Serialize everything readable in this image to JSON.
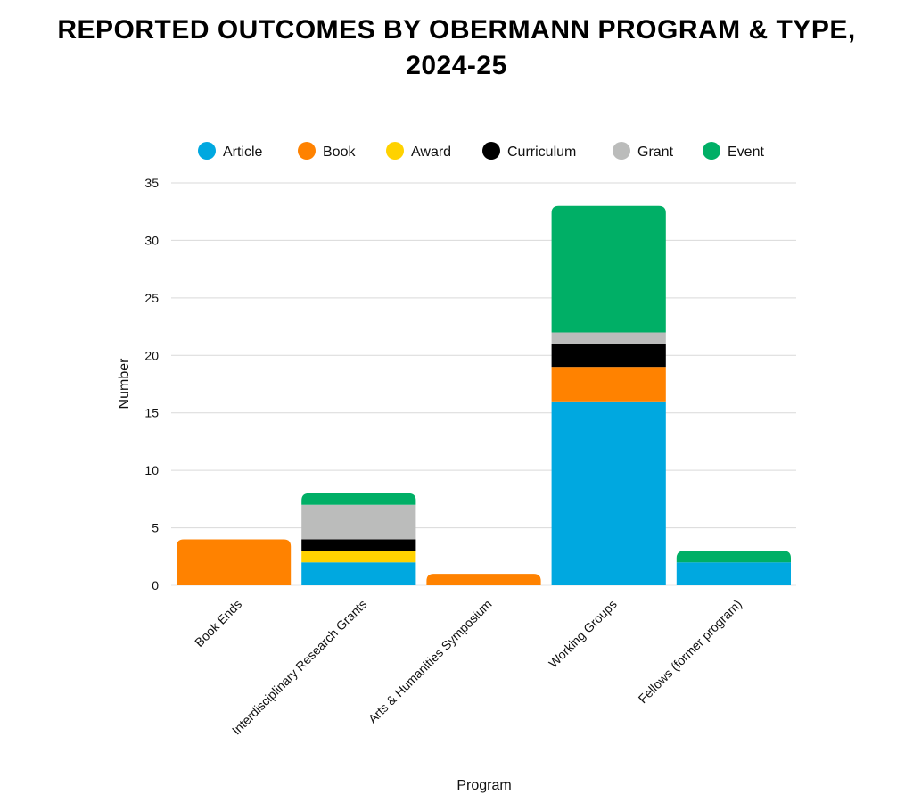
{
  "chart_data": {
    "type": "bar",
    "stacked": true,
    "title": "REPORTED OUTCOMES BY OBERMANN PROGRAM & TYPE, 2024-25",
    "title_lines": [
      "REPORTED OUTCOMES BY OBERMANN PROGRAM & TYPE,",
      "2024-25"
    ],
    "xlabel": "Program",
    "ylabel": "Number",
    "ylim": [
      0,
      35
    ],
    "yticks": [
      0,
      5,
      10,
      15,
      20,
      25,
      30,
      35
    ],
    "grid": true,
    "legend_position": "top",
    "categories": [
      "Book Ends",
      "Interdisciplinary Research Grants",
      "Arts & Humanities Symposium",
      "Working Groups",
      "Fellows (former program)"
    ],
    "series": [
      {
        "name": "Article",
        "color": "#00A8E0",
        "values": [
          0,
          2,
          0,
          16,
          2
        ]
      },
      {
        "name": "Book",
        "color": "#FF8200",
        "values": [
          4,
          0,
          1,
          3,
          0
        ]
      },
      {
        "name": "Award",
        "color": "#FFD200",
        "values": [
          0,
          1,
          0,
          0,
          0
        ]
      },
      {
        "name": "Curriculum",
        "color": "#000000",
        "values": [
          0,
          1,
          0,
          2,
          0
        ]
      },
      {
        "name": "Grant",
        "color": "#BBBCBB",
        "values": [
          0,
          3,
          0,
          1,
          0
        ]
      },
      {
        "name": "Event",
        "color": "#00AF66",
        "values": [
          0,
          1,
          0,
          11,
          1
        ]
      }
    ]
  }
}
